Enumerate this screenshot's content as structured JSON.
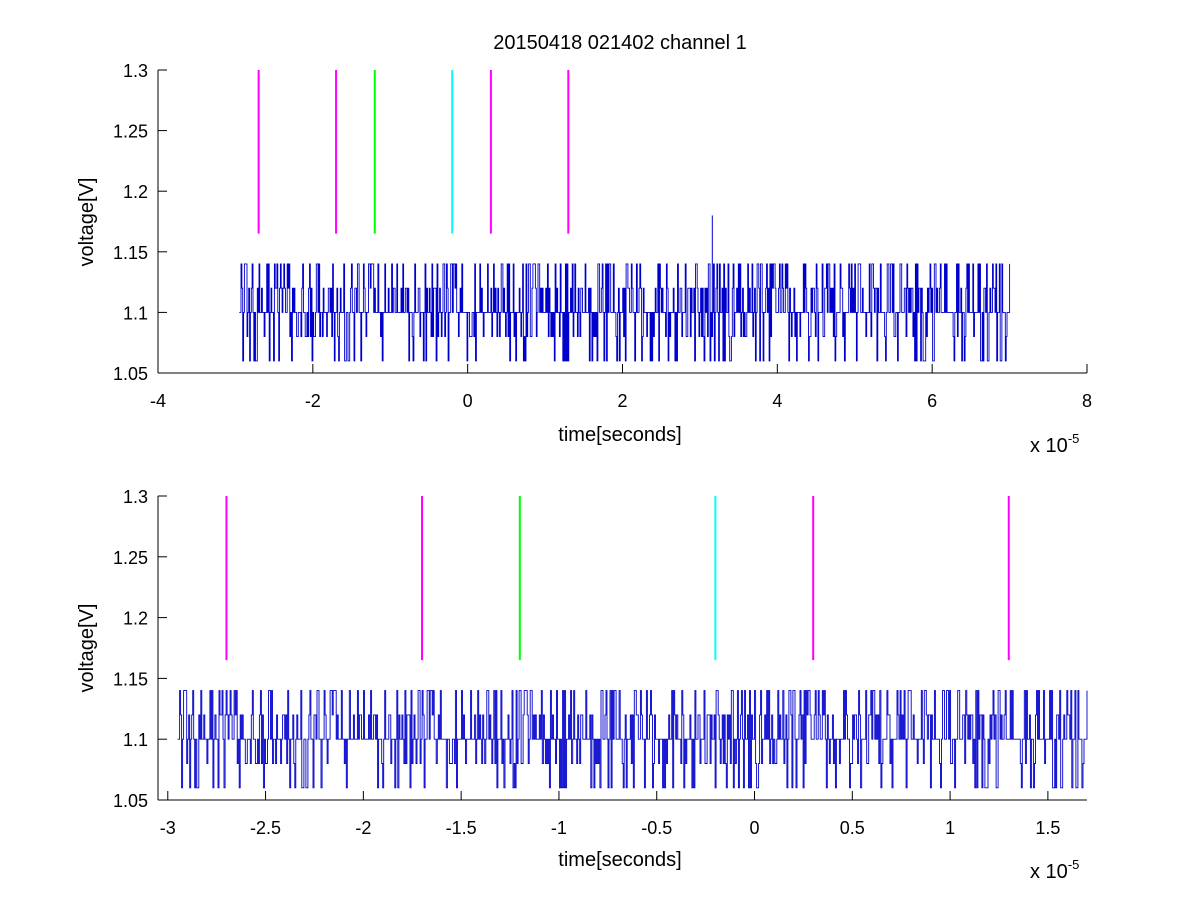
{
  "title": "20150418 021402 channel 1",
  "colors": {
    "signal": "#0000cc",
    "magenta": "#ff00ff",
    "green": "#00ff00",
    "cyan": "#00ffff",
    "axes": "#000000",
    "background": "#ffffff"
  },
  "chart_data": [
    {
      "type": "line",
      "xlabel": "time[seconds]",
      "ylabel": "voltage[V]",
      "x_exponent_label": "x 10",
      "x_exponent": "-5",
      "xlim": [
        -4,
        8
      ],
      "ylim": [
        1.05,
        1.3
      ],
      "x_ticks": [
        -4,
        -2,
        0,
        2,
        4,
        6,
        8
      ],
      "x_tick_labels": [
        "-4",
        "-2",
        "0",
        "2",
        "4",
        "6",
        "8"
      ],
      "y_ticks": [
        1.05,
        1.1,
        1.15,
        1.2,
        1.25,
        1.3
      ],
      "y_tick_labels": [
        "1.05",
        "1.1",
        "1.15",
        "1.2",
        "1.25",
        "1.3"
      ],
      "grid": false,
      "signal": {
        "x_range": [
          -2.95,
          7.0
        ],
        "levels": [
          1.06,
          1.08,
          1.1,
          1.12,
          1.14
        ],
        "baseline": 1.1,
        "spike": {
          "x": 3.16,
          "y": 1.18
        }
      },
      "markers": [
        {
          "x": -2.7,
          "color": "magenta",
          "y_range": [
            1.165,
            1.3
          ]
        },
        {
          "x": -1.7,
          "color": "magenta",
          "y_range": [
            1.165,
            1.3
          ]
        },
        {
          "x": -1.2,
          "color": "green",
          "y_range": [
            1.165,
            1.3
          ]
        },
        {
          "x": -0.2,
          "color": "cyan",
          "y_range": [
            1.165,
            1.3
          ]
        },
        {
          "x": 0.3,
          "color": "magenta",
          "y_range": [
            1.165,
            1.3
          ]
        },
        {
          "x": 1.3,
          "color": "magenta",
          "y_range": [
            1.165,
            1.3
          ]
        }
      ]
    },
    {
      "type": "line",
      "xlabel": "time[seconds]",
      "ylabel": "voltage[V]",
      "x_exponent_label": "x 10",
      "x_exponent": "-5",
      "xlim": [
        -3.05,
        1.7
      ],
      "ylim": [
        1.05,
        1.3
      ],
      "x_ticks": [
        -3,
        -2.5,
        -2,
        -1.5,
        -1,
        -0.5,
        0,
        0.5,
        1,
        1.5
      ],
      "x_tick_labels": [
        "-3",
        "-2.5",
        "-2",
        "-1.5",
        "-1",
        "-0.5",
        "0",
        "0.5",
        "1",
        "1.5"
      ],
      "y_ticks": [
        1.05,
        1.1,
        1.15,
        1.2,
        1.25,
        1.3
      ],
      "y_tick_labels": [
        "1.05",
        "1.1",
        "1.15",
        "1.2",
        "1.25",
        "1.3"
      ],
      "grid": false,
      "signal": {
        "x_range": [
          -2.95,
          1.7
        ],
        "levels": [
          1.06,
          1.08,
          1.1,
          1.12,
          1.14
        ],
        "baseline": 1.1
      },
      "markers": [
        {
          "x": -2.7,
          "color": "magenta",
          "y_range": [
            1.165,
            1.3
          ]
        },
        {
          "x": -1.7,
          "color": "magenta",
          "y_range": [
            1.165,
            1.3
          ]
        },
        {
          "x": -1.2,
          "color": "green",
          "y_range": [
            1.165,
            1.3
          ]
        },
        {
          "x": -0.2,
          "color": "cyan",
          "y_range": [
            1.165,
            1.3
          ]
        },
        {
          "x": 0.3,
          "color": "magenta",
          "y_range": [
            1.165,
            1.3
          ]
        },
        {
          "x": 1.3,
          "color": "magenta",
          "y_range": [
            1.165,
            1.3
          ]
        }
      ]
    }
  ]
}
